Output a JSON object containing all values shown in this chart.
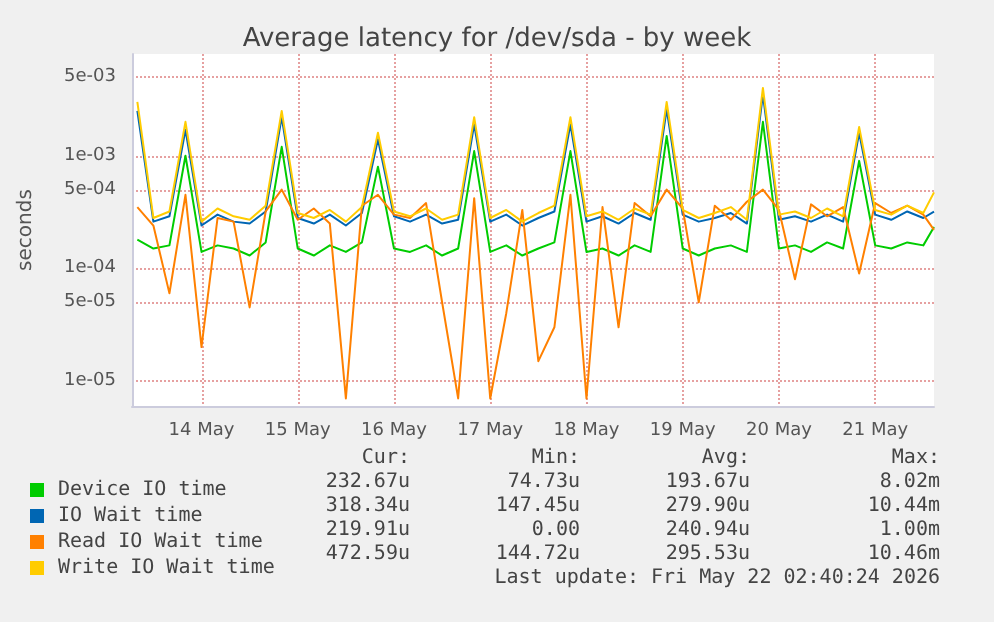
{
  "chart_data": {
    "type": "line",
    "title": "Average latency for /dev/sda - by week",
    "ylabel": "seconds",
    "x": [
      "2026-05-13T20:00",
      "2026-05-14T00:00",
      "2026-05-14T04:00",
      "2026-05-14T08:00",
      "2026-05-14T12:00",
      "2026-05-14T16:00",
      "2026-05-14T20:00",
      "2026-05-15T00:00",
      "2026-05-15T04:00",
      "2026-05-15T08:00",
      "2026-05-15T12:00",
      "2026-05-15T16:00",
      "2026-05-15T20:00",
      "2026-05-16T00:00",
      "2026-05-16T04:00",
      "2026-05-16T08:00",
      "2026-05-16T12:00",
      "2026-05-16T16:00",
      "2026-05-16T20:00",
      "2026-05-17T00:00",
      "2026-05-17T04:00",
      "2026-05-17T08:00",
      "2026-05-17T12:00",
      "2026-05-17T16:00",
      "2026-05-17T20:00",
      "2026-05-18T00:00",
      "2026-05-18T04:00",
      "2026-05-18T08:00",
      "2026-05-18T12:00",
      "2026-05-18T16:00",
      "2026-05-18T20:00",
      "2026-05-19T00:00",
      "2026-05-19T04:00",
      "2026-05-19T08:00",
      "2026-05-19T12:00",
      "2026-05-19T16:00",
      "2026-05-19T20:00",
      "2026-05-20T00:00",
      "2026-05-20T04:00",
      "2026-05-20T08:00",
      "2026-05-20T12:00",
      "2026-05-20T16:00",
      "2026-05-20T20:00",
      "2026-05-21T00:00",
      "2026-05-21T04:00",
      "2026-05-21T08:00",
      "2026-05-21T12:00",
      "2026-05-21T16:00",
      "2026-05-21T20:00",
      "2026-05-22T00:00",
      "2026-05-22T02:40"
    ],
    "series": [
      {
        "name": "Device IO time",
        "color": "#00cc00",
        "values": [
          0.00018,
          0.00015,
          0.00016,
          0.001,
          0.00014,
          0.00016,
          0.00015,
          0.00013,
          0.00017,
          0.0012,
          0.00015,
          0.00013,
          0.00016,
          0.00014,
          0.00017,
          0.0008,
          0.00015,
          0.00014,
          0.00016,
          0.00013,
          0.00015,
          0.0011,
          0.00014,
          0.00016,
          0.00013,
          0.00015,
          0.00017,
          0.0011,
          0.00014,
          0.00015,
          0.00013,
          0.00016,
          0.00014,
          0.0015,
          0.00015,
          0.00013,
          0.00015,
          0.00016,
          0.00014,
          0.002,
          0.00015,
          0.00016,
          0.00014,
          0.00017,
          0.00015,
          0.0009,
          0.00016,
          0.00015,
          0.00017,
          0.00016,
          0.00023267
        ]
      },
      {
        "name": "IO Wait time",
        "color": "#0066b3",
        "values": [
          0.0025,
          0.00026,
          0.00029,
          0.0017,
          0.00024,
          0.0003,
          0.00026,
          0.00025,
          0.00032,
          0.0022,
          0.00028,
          0.00025,
          0.0003,
          0.00024,
          0.00031,
          0.0014,
          0.00029,
          0.00026,
          0.0003,
          0.00025,
          0.00027,
          0.0019,
          0.00026,
          0.0003,
          0.00024,
          0.00028,
          0.00032,
          0.0019,
          0.00026,
          0.00029,
          0.00025,
          0.00031,
          0.00027,
          0.0026,
          0.0003,
          0.00026,
          0.00028,
          0.00031,
          0.00025,
          0.0035,
          0.00027,
          0.00029,
          0.00026,
          0.0003,
          0.00026,
          0.0016,
          0.0003,
          0.00027,
          0.00032,
          0.00028,
          0.00031834
        ]
      },
      {
        "name": "Read IO Wait time",
        "color": "#ff8000",
        "values": [
          0.00035,
          0.00024,
          6e-05,
          0.00045,
          2e-05,
          0.00028,
          0.00026,
          4.5e-05,
          0.00032,
          0.0005,
          0.00027,
          0.00034,
          0.00025,
          7e-06,
          0.00036,
          0.00045,
          0.0003,
          0.00028,
          0.00038,
          5e-05,
          7e-06,
          0.00042,
          7e-06,
          4e-05,
          0.00033,
          1.5e-05,
          3e-05,
          0.00045,
          7e-06,
          0.00035,
          3e-05,
          0.00038,
          0.00029,
          0.0005,
          0.00034,
          5e-05,
          0.00036,
          0.00027,
          0.00039,
          0.0005,
          0.00033,
          8e-05,
          0.00037,
          0.00029,
          0.00035,
          9e-05,
          0.00038,
          0.00031,
          0.00036,
          0.0003,
          0.00021991
        ]
      },
      {
        "name": "Write IO Wait time",
        "color": "#ffcc00",
        "values": [
          0.003,
          0.00028,
          0.00032,
          0.002,
          0.00026,
          0.00034,
          0.00029,
          0.00027,
          0.00036,
          0.0025,
          0.00031,
          0.00028,
          0.00033,
          0.00026,
          0.00035,
          0.0016,
          0.00032,
          0.00029,
          0.00034,
          0.00027,
          0.0003,
          0.0022,
          0.00028,
          0.00033,
          0.00026,
          0.00031,
          0.00036,
          0.0022,
          0.00029,
          0.00032,
          0.00027,
          0.00034,
          0.0003,
          0.003,
          0.00033,
          0.00028,
          0.00031,
          0.00035,
          0.00027,
          0.004,
          0.0003,
          0.00032,
          0.00028,
          0.00034,
          0.00029,
          0.0018,
          0.00033,
          0.0003,
          0.00036,
          0.00031,
          0.00047259
        ]
      }
    ],
    "xlim": [
      "2026-05-13T18:40",
      "2026-05-22T02:40"
    ],
    "xticks": [
      {
        "value": "2026-05-14T12:00",
        "label": "14 May"
      },
      {
        "value": "2026-05-15T12:00",
        "label": "15 May"
      },
      {
        "value": "2026-05-16T12:00",
        "label": "16 May"
      },
      {
        "value": "2026-05-17T12:00",
        "label": "17 May"
      },
      {
        "value": "2026-05-18T12:00",
        "label": "18 May"
      },
      {
        "value": "2026-05-19T12:00",
        "label": "19 May"
      },
      {
        "value": "2026-05-20T12:00",
        "label": "20 May"
      },
      {
        "value": "2026-05-21T12:00",
        "label": "21 May"
      }
    ],
    "ylim": [
      6e-06,
      0.008
    ],
    "yticks": [
      {
        "value": 1e-05,
        "label": "1e-05"
      },
      {
        "value": 5e-05,
        "label": "5e-05"
      },
      {
        "value": 0.0001,
        "label": "1e-04"
      },
      {
        "value": 0.0005,
        "label": "5e-04"
      },
      {
        "value": 0.001,
        "label": "1e-03"
      },
      {
        "value": 0.005,
        "label": "5e-03"
      }
    ],
    "log": "y",
    "grid": true,
    "legend": "bottom left",
    "marker": "none",
    "line_style": "solid",
    "annotations": [
      "Cur:",
      "Min:",
      "Avg:",
      "Max:",
      "232.67u",
      "74.73u",
      "193.67u",
      "8.02m",
      "318.34u",
      "147.45u",
      "279.90u",
      "10.44m",
      "219.91u",
      "0.00",
      "240.94u",
      "1.00m",
      "472.59u",
      "144.72u",
      "295.53u",
      "10.46m",
      "Last update: Fri May 22 02:40:24 2026"
    ]
  }
}
